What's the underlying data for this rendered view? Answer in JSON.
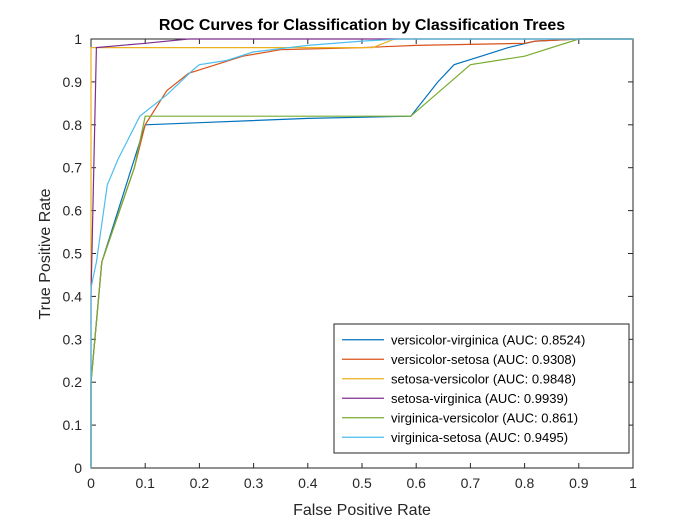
{
  "chart_data": {
    "type": "line",
    "title": "ROC Curves for Classification by Classification Trees",
    "xlabel": "False Positive Rate",
    "ylabel": "True Positive Rate",
    "xlim": [
      0,
      1
    ],
    "ylim": [
      0,
      1
    ],
    "xticks": [
      "0",
      "0.1",
      "0.2",
      "0.3",
      "0.4",
      "0.5",
      "0.6",
      "0.7",
      "0.8",
      "0.9",
      "1"
    ],
    "yticks": [
      "0",
      "0.1",
      "0.2",
      "0.3",
      "0.4",
      "0.5",
      "0.6",
      "0.7",
      "0.8",
      "0.9",
      "1"
    ],
    "grid": false,
    "legend_position": "bottom-right",
    "series": [
      {
        "name": "versicolor-virginica (AUC: 0.8524)",
        "color": "#0072BD",
        "x": [
          0,
          0,
          0.02,
          0.05,
          0.1,
          0.2,
          0.4,
          0.59,
          0.64,
          0.67,
          0.72,
          0.77,
          0.82,
          0.9,
          1
        ],
        "y": [
          0,
          0.2,
          0.48,
          0.6,
          0.8,
          0.805,
          0.815,
          0.82,
          0.9,
          0.94,
          0.96,
          0.98,
          0.995,
          1,
          1
        ]
      },
      {
        "name": "versicolor-setosa (AUC: 0.9308)",
        "color": "#D95319",
        "x": [
          0,
          0,
          0.02,
          0.08,
          0.1,
          0.14,
          0.18,
          0.28,
          0.35,
          0.5,
          0.6,
          0.8,
          0.82,
          0.9,
          1
        ],
        "y": [
          0,
          0.2,
          0.48,
          0.7,
          0.8,
          0.88,
          0.92,
          0.96,
          0.975,
          0.98,
          0.985,
          0.99,
          0.995,
          1,
          1
        ]
      },
      {
        "name": "setosa-versicolor (AUC: 0.9848)",
        "color": "#EDB120",
        "x": [
          0,
          0,
          0.01,
          0.5,
          0.52,
          0.56,
          0.9,
          1
        ],
        "y": [
          0,
          0.98,
          0.98,
          0.98,
          0.98,
          1,
          1,
          1
        ]
      },
      {
        "name": "setosa-virginica (AUC: 0.9939)",
        "color": "#7E2F8E",
        "x": [
          0,
          0,
          0.01,
          0.1,
          0.18,
          0.5,
          1
        ],
        "y": [
          0,
          0.4,
          0.98,
          0.99,
          1,
          1,
          1
        ]
      },
      {
        "name": "virginica-versicolor (AUC: 0.861)",
        "color": "#77AC30",
        "x": [
          0,
          0,
          0.02,
          0.08,
          0.1,
          0.45,
          0.59,
          0.7,
          0.8,
          0.9,
          1
        ],
        "y": [
          0,
          0.2,
          0.48,
          0.7,
          0.82,
          0.82,
          0.82,
          0.94,
          0.96,
          1,
          1
        ]
      },
      {
        "name": "virginica-setosa (AUC: 0.9495)",
        "color": "#4DBEEE",
        "x": [
          0,
          0,
          0.01,
          0.03,
          0.05,
          0.09,
          0.14,
          0.19,
          0.2,
          0.25,
          0.3,
          0.4,
          0.5,
          0.57,
          1
        ],
        "y": [
          0,
          0.42,
          0.48,
          0.66,
          0.72,
          0.82,
          0.87,
          0.93,
          0.94,
          0.95,
          0.97,
          0.985,
          0.995,
          1,
          1
        ]
      }
    ]
  }
}
